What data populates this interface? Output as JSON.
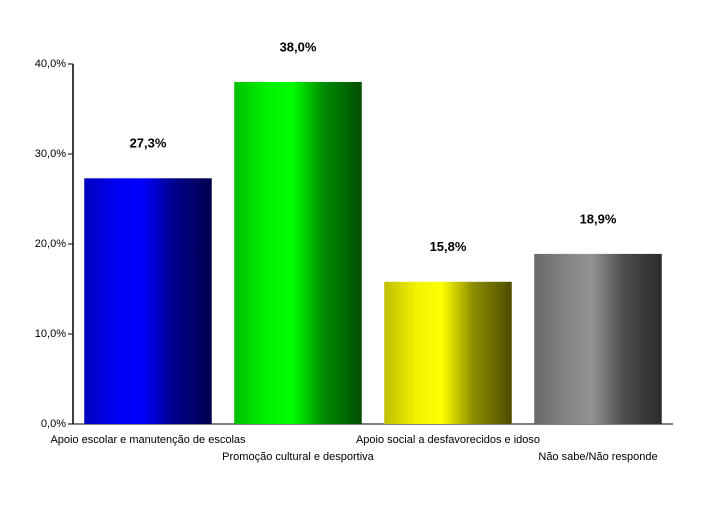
{
  "chart_data": {
    "type": "bar",
    "categories": [
      "Apoio escolar e manutenção de escolas",
      "Promoção cultural e desportiva",
      "Apoio social a desfavorecidos e idoso",
      "Não sabe/Não responde"
    ],
    "values": [
      27.3,
      38.0,
      15.8,
      18.9
    ],
    "value_labels": [
      "27,3%",
      "38,0%",
      "15,8%",
      "18,9%"
    ],
    "colors": [
      "#0000ff",
      "#00ff00",
      "#ffff00",
      "#8c8c8c"
    ],
    "ylim": [
      0,
      40
    ],
    "yticks": [
      {
        "value": 0,
        "label": "0,0%"
      },
      {
        "value": 10,
        "label": "10,0%"
      },
      {
        "value": 20,
        "label": "20,0%"
      },
      {
        "value": 30,
        "label": "30,0%"
      },
      {
        "value": 40,
        "label": "40,0%"
      }
    ],
    "grid": false
  }
}
